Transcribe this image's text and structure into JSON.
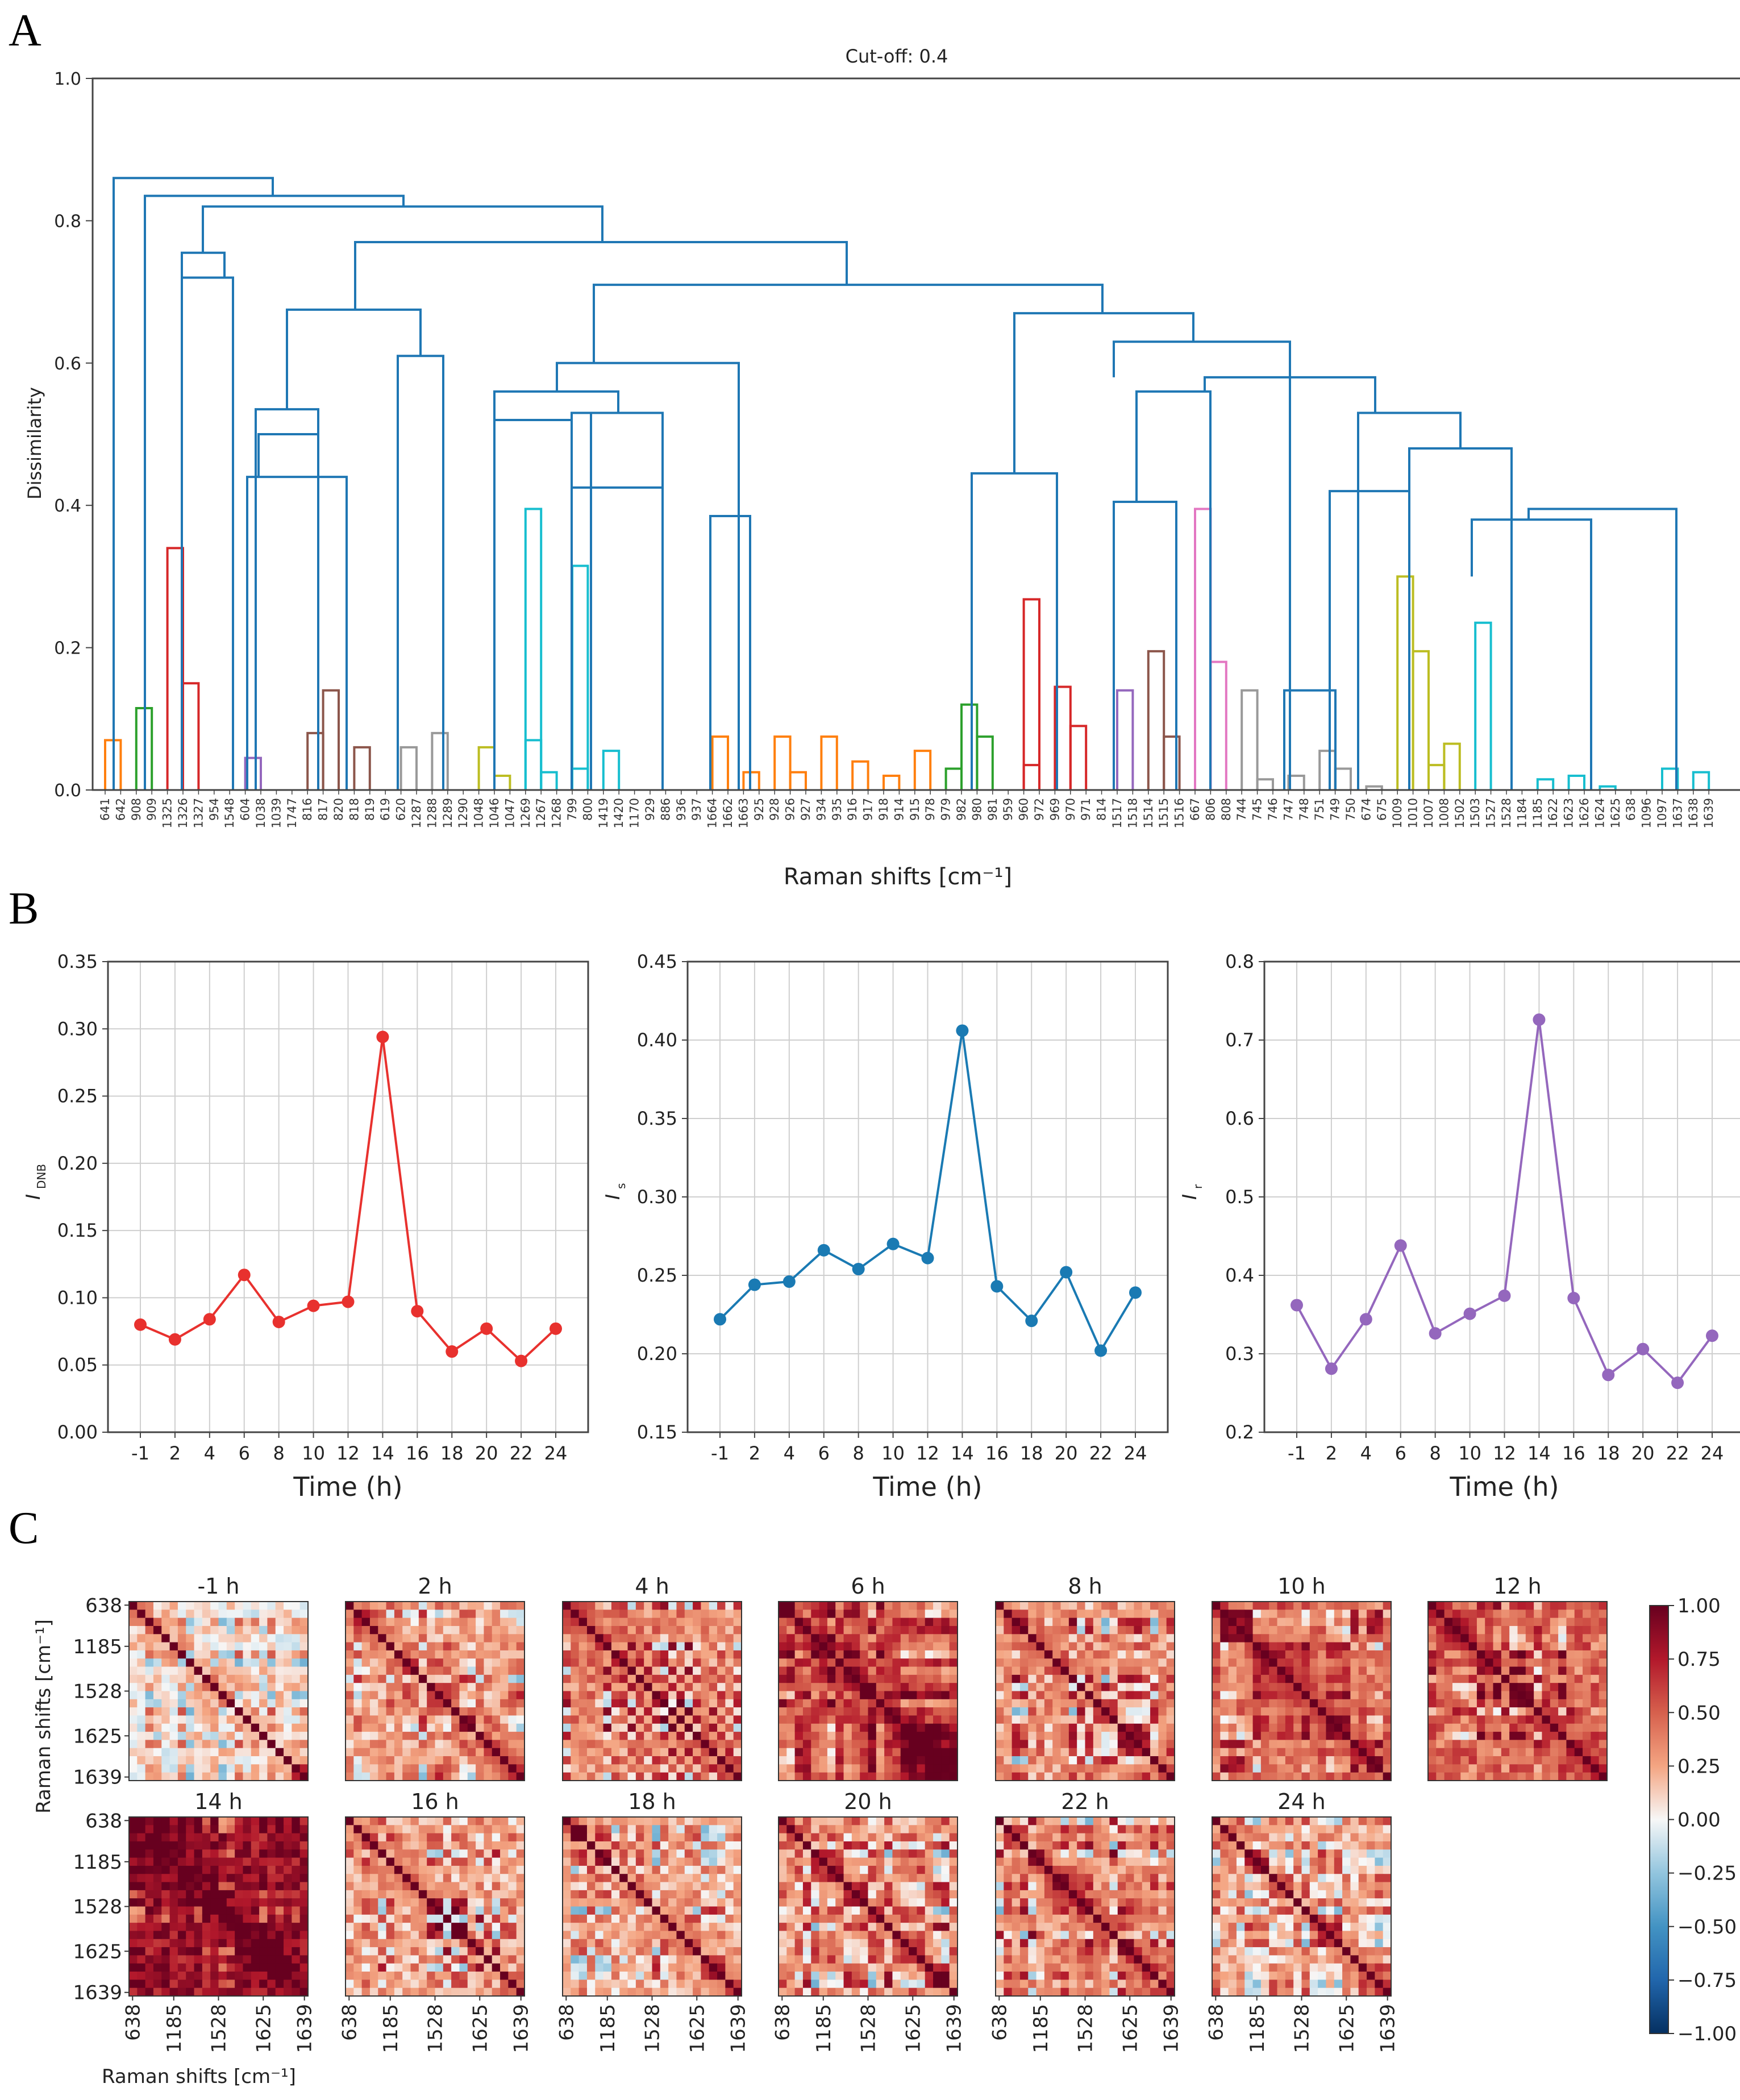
{
  "panel_labels": [
    "A",
    "B",
    "C"
  ],
  "colors": {
    "link": "#1f77b4",
    "axis": "#444444",
    "grid": "#cccccc",
    "palette": {
      "orange": "#ff7f0e",
      "green": "#2ca02c",
      "red": "#d62728",
      "purple": "#9467bd",
      "brown": "#8c564b",
      "pink": "#e377c2",
      "gray": "#999999",
      "olive": "#bcbd22",
      "cyan": "#17becf"
    }
  },
  "chart_data": [
    {
      "type": "dendrogram",
      "panel": "A",
      "title": "Cut-off: 0.4",
      "xlabel": "Raman shifts [cm⁻¹]",
      "ylabel": "Dissimilarity",
      "ylim": [
        0,
        1.0
      ],
      "yticks": [
        "0.0",
        "0.2",
        "0.4",
        "0.6",
        "0.8",
        "1.0"
      ],
      "leaves": [
        "641",
        "642",
        "908",
        "909",
        "1325",
        "1326",
        "1327",
        "954",
        "1548",
        "604",
        "1038",
        "1039",
        "1747",
        "816",
        "817",
        "820",
        "818",
        "819",
        "619",
        "620",
        "1287",
        "1288",
        "1289",
        "1290",
        "1048",
        "1046",
        "1047",
        "1269",
        "1267",
        "1268",
        "799",
        "800",
        "1419",
        "1420",
        "1170",
        "929",
        "886",
        "936",
        "937",
        "1664",
        "1662",
        "1663",
        "925",
        "928",
        "926",
        "927",
        "934",
        "935",
        "916",
        "917",
        "918",
        "914",
        "915",
        "978",
        "979",
        "982",
        "980",
        "981",
        "959",
        "960",
        "972",
        "969",
        "970",
        "971",
        "814",
        "1517",
        "1518",
        "1514",
        "1515",
        "1516",
        "667",
        "806",
        "808",
        "744",
        "745",
        "746",
        "747",
        "748",
        "751",
        "749",
        "750",
        "674",
        "675",
        "1009",
        "1010",
        "1007",
        "1008",
        "1502",
        "1503",
        "1527",
        "1528",
        "1184",
        "1185",
        "1622",
        "1623",
        "1626",
        "1624",
        "1625",
        "638",
        "1096",
        "1097",
        "1637",
        "1638",
        "1639"
      ],
      "links": [
        [
          0,
          1,
          0.07,
          "orange"
        ],
        [
          2,
          3,
          0.115,
          "green"
        ],
        [
          5,
          6,
          0.15,
          "red"
        ],
        [
          4,
          "M",
          0.34,
          "red"
        ],
        [
          9,
          10,
          0.045,
          "purple"
        ],
        [
          14,
          15,
          0.14,
          "brown"
        ],
        [
          16,
          17,
          0.06,
          "brown"
        ],
        [
          13,
          "M",
          0.08,
          "brown"
        ],
        [
          21,
          22,
          0.08,
          "gray"
        ],
        [
          19,
          20,
          0.06,
          "gray"
        ],
        [
          25,
          26,
          0.02,
          "olive"
        ],
        [
          24,
          "M",
          0.06,
          "olive"
        ],
        [
          28,
          29,
          0.025,
          "cyan"
        ],
        [
          30,
          31,
          0.03,
          "cyan"
        ],
        [
          32,
          33,
          0.055,
          "cyan"
        ],
        [
          27,
          "M",
          0.07,
          "cyan"
        ],
        [
          30,
          "M",
          0.315,
          "cyan"
        ],
        [
          27,
          "M",
          0.395,
          "cyan"
        ],
        [
          41,
          42,
          0.025,
          "orange"
        ],
        [
          39,
          40,
          0.075,
          "orange"
        ],
        [
          44,
          45,
          0.025,
          "orange"
        ],
        [
          43,
          44,
          0.075,
          "orange"
        ],
        [
          46,
          47,
          0.075,
          "orange"
        ],
        [
          48,
          49,
          0.04,
          "orange"
        ],
        [
          50,
          51,
          0.02,
          "orange"
        ],
        [
          52,
          53,
          0.055,
          "orange"
        ],
        [
          54,
          55,
          0.03,
          "green"
        ],
        [
          56,
          57,
          0.075,
          "green"
        ],
        [
          55,
          "M",
          0.12,
          "green"
        ],
        [
          59,
          60,
          0.035,
          "red"
        ],
        [
          62,
          63,
          0.09,
          "red"
        ],
        [
          61,
          "M",
          0.145,
          "red"
        ],
        [
          59,
          "M",
          0.268,
          "red"
        ],
        [
          68,
          69,
          0.075,
          "brown"
        ],
        [
          67,
          "M",
          0.195,
          "brown"
        ],
        [
          65,
          66,
          0.14,
          "purple"
        ],
        [
          71,
          72,
          0.18,
          "pink"
        ],
        [
          70,
          "M",
          0.395,
          "pink"
        ],
        [
          74,
          75,
          0.015,
          "gray"
        ],
        [
          76,
          77,
          0.02,
          "gray"
        ],
        [
          79,
          80,
          0.03,
          "gray"
        ],
        [
          81,
          82,
          0.005,
          "gray"
        ],
        [
          78,
          "M",
          0.055,
          "gray"
        ],
        [
          73,
          "M",
          0.14,
          "gray"
        ],
        [
          86,
          87,
          0.065,
          "olive"
        ],
        [
          85,
          86,
          0.035,
          "olive"
        ],
        [
          84,
          "M",
          0.195,
          "olive"
        ],
        [
          83,
          "M",
          0.3,
          "olive"
        ],
        [
          92,
          93,
          0.015,
          "cyan"
        ],
        [
          94,
          95,
          0.02,
          "cyan"
        ],
        [
          96,
          97,
          0.005,
          "cyan"
        ],
        [
          100,
          101,
          0.03,
          "cyan"
        ],
        [
          102,
          103,
          0.025,
          "cyan"
        ],
        [
          88,
          89,
          0.235,
          "cyan"
        ]
      ]
    },
    {
      "type": "line",
      "panel": "B1",
      "x": [
        "-1",
        "2",
        "4",
        "6",
        "8",
        "10",
        "12",
        "14",
        "16",
        "18",
        "20",
        "22",
        "24"
      ],
      "values": [
        0.08,
        0.069,
        0.084,
        0.117,
        0.082,
        0.094,
        0.097,
        0.294,
        0.09,
        0.06,
        0.077,
        0.053,
        0.077
      ],
      "ylim": [
        0.0,
        0.35
      ],
      "yticks": [
        "0.00",
        "0.05",
        "0.10",
        "0.15",
        "0.20",
        "0.25",
        "0.30",
        "0.35"
      ],
      "xlabel": "Time (h)",
      "ylabel": "I",
      "ylabel_sub": "DNB",
      "color": "#e8312e"
    },
    {
      "type": "line",
      "panel": "B2",
      "x": [
        "-1",
        "2",
        "4",
        "6",
        "8",
        "10",
        "12",
        "14",
        "16",
        "18",
        "20",
        "22",
        "24"
      ],
      "values": [
        0.222,
        0.244,
        0.246,
        0.266,
        0.254,
        0.27,
        0.261,
        0.406,
        0.243,
        0.221,
        0.252,
        0.202,
        0.239
      ],
      "ylim": [
        0.15,
        0.45
      ],
      "yticks": [
        "0.15",
        "0.20",
        "0.25",
        "0.30",
        "0.35",
        "0.40",
        "0.45"
      ],
      "xlabel": "Time (h)",
      "ylabel": "I",
      "ylabel_sub": "s",
      "color": "#1a7ab3"
    },
    {
      "type": "line",
      "panel": "B3",
      "x": [
        "-1",
        "2",
        "4",
        "6",
        "8",
        "10",
        "12",
        "14",
        "16",
        "18",
        "20",
        "22",
        "24"
      ],
      "values": [
        0.362,
        0.281,
        0.344,
        0.438,
        0.326,
        0.351,
        0.374,
        0.726,
        0.371,
        0.273,
        0.306,
        0.263,
        0.323
      ],
      "ylim": [
        0.2,
        0.8
      ],
      "yticks": [
        "0.2",
        "0.3",
        "0.4",
        "0.5",
        "0.6",
        "0.7",
        "0.8"
      ],
      "xlabel": "Time (h)",
      "ylabel": "I",
      "ylabel_sub": "r",
      "color": "#9467bd"
    },
    {
      "type": "heatmap",
      "panel": "C",
      "titles": [
        "-1 h",
        "2 h",
        "4 h",
        "6 h",
        "8 h",
        "10 h",
        "12 h",
        "14 h",
        "16 h",
        "18 h",
        "20 h",
        "22 h",
        "24 h"
      ],
      "tick_labels": [
        "638",
        "1185",
        "1528",
        "1625",
        "1639"
      ],
      "ylabel": "Raman shifts [cm⁻¹]",
      "xlabel": "Raman shifts [cm⁻¹]",
      "colorbar_range": [
        -1.0,
        1.0
      ],
      "colorbar_ticks": [
        "1.00",
        "0.75",
        "0.50",
        "0.25",
        "0.00",
        "−0.25",
        "−0.50",
        "−0.75",
        "−1.00"
      ],
      "mean_correlation": [
        0.05,
        0.25,
        0.35,
        0.55,
        0.3,
        0.45,
        0.45,
        0.8,
        0.25,
        0.2,
        0.3,
        0.3,
        0.2
      ]
    }
  ]
}
